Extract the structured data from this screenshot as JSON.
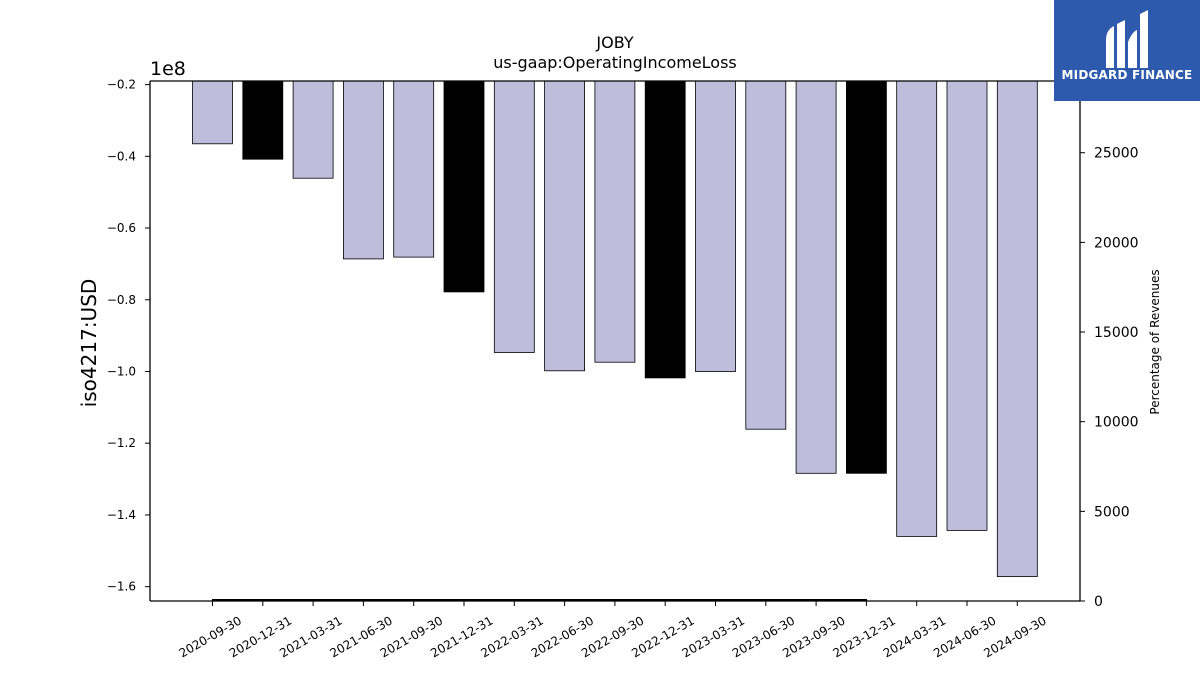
{
  "chart_data": {
    "type": "bar",
    "title": "JOBY",
    "subtitle": "us-gaap:OperatingIncomeLoss",
    "ylabel": "iso4217:USD",
    "y2label": "Percentage of Revenues",
    "scale_label": "1e8",
    "categories": [
      "2020-09-30",
      "2020-12-31",
      "2021-03-31",
      "2021-06-30",
      "2021-09-30",
      "2021-12-31",
      "2022-03-31",
      "2022-06-30",
      "2022-09-30",
      "2022-12-31",
      "2023-03-31",
      "2023-06-30",
      "2023-09-30",
      "2023-12-31",
      "2024-03-31",
      "2024-06-30",
      "2024-09-30"
    ],
    "values": [
      -36500000,
      -40800000,
      -46100000,
      -68600000,
      -68100000,
      -77800000,
      -94700000,
      -99800000,
      -97400000,
      -101800000,
      -100000000,
      -116100000,
      -128400000,
      -128400000,
      -146000000,
      -144300000,
      -157200000
    ],
    "highlight": [
      false,
      true,
      false,
      false,
      false,
      true,
      false,
      false,
      false,
      true,
      false,
      false,
      false,
      true,
      false,
      false,
      false
    ],
    "ylim": [
      -164000000,
      -19000000
    ],
    "yticks": [
      -20000000,
      -40000000,
      -60000000,
      -80000000,
      -100000000,
      -120000000,
      -140000000,
      -160000000
    ],
    "ytick_labels": [
      "−0.2",
      "−0.4",
      "−0.6",
      "−0.8",
      "−1.0",
      "−1.2",
      "−1.4",
      "−1.6"
    ],
    "y2lim": [
      0,
      29000
    ],
    "y2ticks": [
      0,
      5000,
      10000,
      15000,
      20000,
      25000
    ],
    "y2tick_labels": [
      "0",
      "5000",
      "10000",
      "15000",
      "20000",
      "25000"
    ],
    "colors": {
      "bar": "#bfbcdc",
      "highlight": "#000000",
      "edge": "#000000"
    },
    "legend": "none",
    "grid": false
  },
  "logo": {
    "text": "MIDGARD FINANCE"
  }
}
